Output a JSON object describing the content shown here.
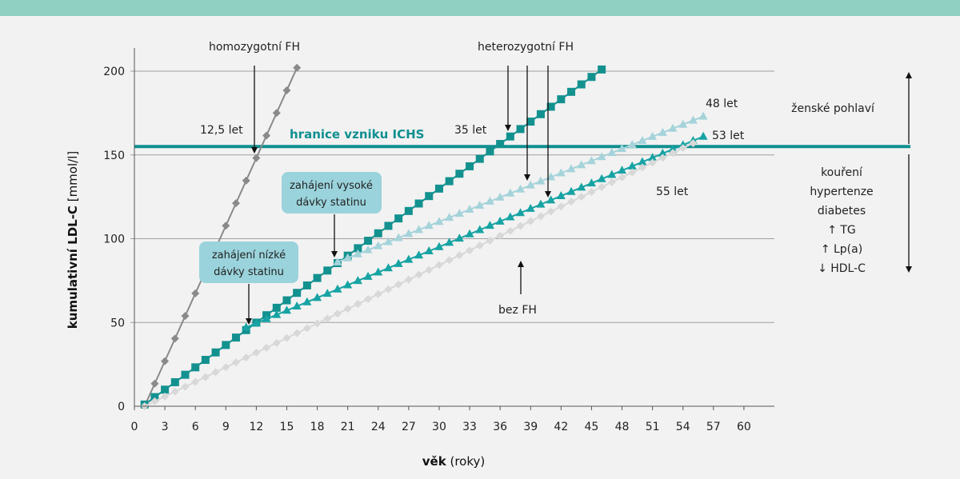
{
  "colors": {
    "top_band": "#8fd0c3",
    "panel": "#f2f2f2",
    "threshold": "#108f90",
    "heterozygous_no_treatment": "#13918f",
    "heterozygous_low_dose": "#17a3a3",
    "heterozygous_high_dose": "#a5d3da",
    "homozygous": "#8a8a8a",
    "no_fh": "#d8d8d8",
    "callout_box": "#9ad3dc",
    "grid": "#a0a0a0"
  },
  "chart_data": {
    "type": "line",
    "x_axis": {
      "label_bold": "věk",
      "label_rest": " (roky)",
      "min": 0,
      "max": 63,
      "ticks": [
        0,
        3,
        6,
        9,
        12,
        15,
        18,
        21,
        24,
        27,
        30,
        33,
        36,
        39,
        42,
        45,
        48,
        51,
        54,
        57,
        60
      ]
    },
    "y_axis": {
      "label_bold": "kumulativní LDL-C",
      "label_rest": " [mmol/l]",
      "min": 0,
      "max": 210,
      "ticks": [
        0,
        50,
        100,
        150,
        200
      ]
    },
    "grid": "horizontal",
    "threshold": {
      "value": 155,
      "label": "hranice vzniku ICHS"
    },
    "series": [
      {
        "key": "homozygous",
        "marker": "diamond",
        "x0": 1,
        "x1": 16,
        "y0": 0,
        "y1": 202,
        "step": 1
      },
      {
        "key": "heterozygous_no_treatment",
        "marker": "square",
        "x0": 1,
        "x1": 46,
        "y0": 1,
        "y1": 201,
        "step": 1
      },
      {
        "key": "heterozygous_high_dose",
        "marker": "triangle",
        "points": [
          [
            20,
            86
          ],
          [
            56,
            173
          ]
        ],
        "step": 1
      },
      {
        "key": "heterozygous_low_dose",
        "marker": "triangle",
        "points": [
          [
            11,
            47
          ],
          [
            56,
            161
          ]
        ],
        "step": 1
      },
      {
        "key": "no_fh",
        "marker": "diamond",
        "x0": 1,
        "x1": 55,
        "y0": 0,
        "y1": 157,
        "step": 1
      }
    ],
    "annotations": {
      "homozygous_label": "homozygotní FH",
      "heterozygous_label": "heterozygotní FH",
      "no_fh_label": "bez FH",
      "age_12_5": "12,5 let",
      "age_35": "35 let",
      "age_48": "48 let",
      "age_53": "53 let",
      "age_55": "55 let",
      "high_dose_line1": "zahájení vysoké",
      "high_dose_line2": "dávky statinu",
      "low_dose_line1": "zahájení nízké",
      "low_dose_line2": "dávky statinu"
    },
    "risk_factors": {
      "female": "ženské pohlaví",
      "list": [
        "kouření",
        "hypertenze",
        "diabetes",
        "↑ TG",
        "↑ Lp(a)",
        "↓ HDL-C"
      ]
    }
  }
}
